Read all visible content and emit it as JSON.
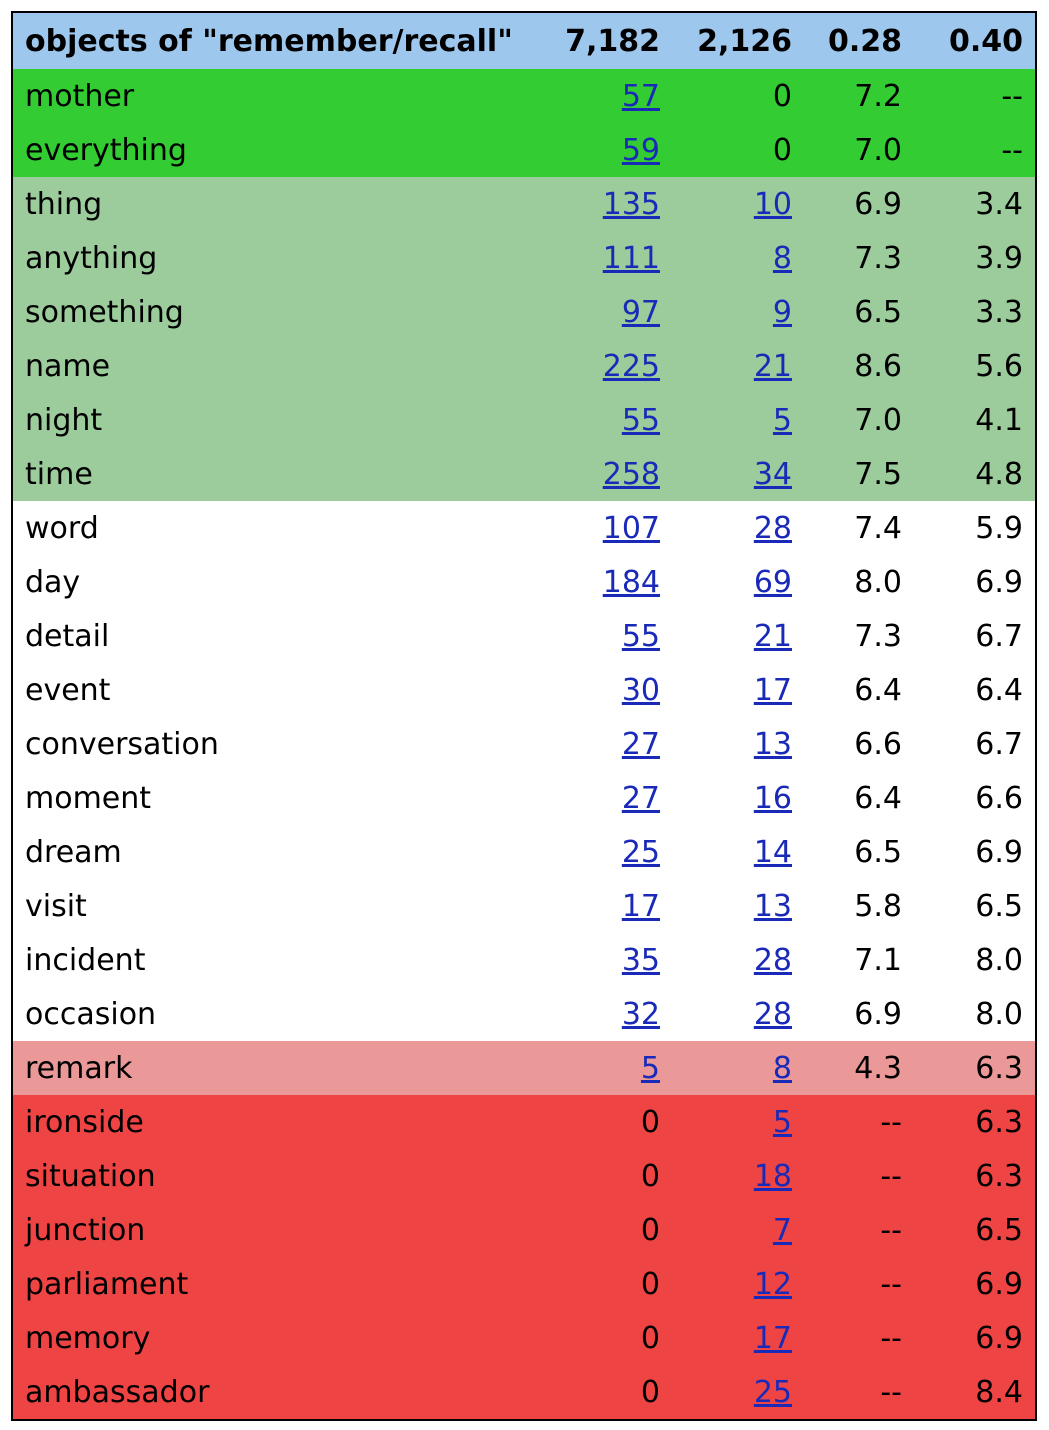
{
  "header": {
    "label": "objects of \"remember/recall\"",
    "c1": "7,182",
    "c2": "2,126",
    "c3": "0.28",
    "c4": "0.40"
  },
  "colors": {
    "header": "#9dc7ec",
    "strong_green": "#33cc33",
    "light_green": "#9ccc9b",
    "white": "#ffffff",
    "light_red": "#ea9898",
    "strong_red": "#ef4444",
    "link": "#1a2ab8"
  },
  "rows": [
    {
      "word": "mother",
      "c1": "57",
      "c2": "0",
      "c3": "7.2",
      "c4": "--",
      "c1_link": true,
      "c2_link": false,
      "band": "strong_green"
    },
    {
      "word": "everything",
      "c1": "59",
      "c2": "0",
      "c3": "7.0",
      "c4": "--",
      "c1_link": true,
      "c2_link": false,
      "band": "strong_green"
    },
    {
      "word": "thing",
      "c1": "135",
      "c2": "10",
      "c3": "6.9",
      "c4": "3.4",
      "c1_link": true,
      "c2_link": true,
      "band": "light_green"
    },
    {
      "word": "anything",
      "c1": "111",
      "c2": "8",
      "c3": "7.3",
      "c4": "3.9",
      "c1_link": true,
      "c2_link": true,
      "band": "light_green"
    },
    {
      "word": "something",
      "c1": "97",
      "c2": "9",
      "c3": "6.5",
      "c4": "3.3",
      "c1_link": true,
      "c2_link": true,
      "band": "light_green"
    },
    {
      "word": "name",
      "c1": "225",
      "c2": "21",
      "c3": "8.6",
      "c4": "5.6",
      "c1_link": true,
      "c2_link": true,
      "band": "light_green"
    },
    {
      "word": "night",
      "c1": "55",
      "c2": "5",
      "c3": "7.0",
      "c4": "4.1",
      "c1_link": true,
      "c2_link": true,
      "band": "light_green"
    },
    {
      "word": "time",
      "c1": "258",
      "c2": "34",
      "c3": "7.5",
      "c4": "4.8",
      "c1_link": true,
      "c2_link": true,
      "band": "light_green"
    },
    {
      "word": "word",
      "c1": "107",
      "c2": "28",
      "c3": "7.4",
      "c4": "5.9",
      "c1_link": true,
      "c2_link": true,
      "band": "white"
    },
    {
      "word": "day",
      "c1": "184",
      "c2": "69",
      "c3": "8.0",
      "c4": "6.9",
      "c1_link": true,
      "c2_link": true,
      "band": "white"
    },
    {
      "word": "detail",
      "c1": "55",
      "c2": "21",
      "c3": "7.3",
      "c4": "6.7",
      "c1_link": true,
      "c2_link": true,
      "band": "white"
    },
    {
      "word": "event",
      "c1": "30",
      "c2": "17",
      "c3": "6.4",
      "c4": "6.4",
      "c1_link": true,
      "c2_link": true,
      "band": "white"
    },
    {
      "word": "conversation",
      "c1": "27",
      "c2": "13",
      "c3": "6.6",
      "c4": "6.7",
      "c1_link": true,
      "c2_link": true,
      "band": "white"
    },
    {
      "word": "moment",
      "c1": "27",
      "c2": "16",
      "c3": "6.4",
      "c4": "6.6",
      "c1_link": true,
      "c2_link": true,
      "band": "white"
    },
    {
      "word": "dream",
      "c1": "25",
      "c2": "14",
      "c3": "6.5",
      "c4": "6.9",
      "c1_link": true,
      "c2_link": true,
      "band": "white"
    },
    {
      "word": "visit",
      "c1": "17",
      "c2": "13",
      "c3": "5.8",
      "c4": "6.5",
      "c1_link": true,
      "c2_link": true,
      "band": "white"
    },
    {
      "word": "incident",
      "c1": "35",
      "c2": "28",
      "c3": "7.1",
      "c4": "8.0",
      "c1_link": true,
      "c2_link": true,
      "band": "white"
    },
    {
      "word": "occasion",
      "c1": "32",
      "c2": "28",
      "c3": "6.9",
      "c4": "8.0",
      "c1_link": true,
      "c2_link": true,
      "band": "white"
    },
    {
      "word": "remark",
      "c1": "5",
      "c2": "8",
      "c3": "4.3",
      "c4": "6.3",
      "c1_link": true,
      "c2_link": true,
      "band": "light_red"
    },
    {
      "word": "ironside",
      "c1": "0",
      "c2": "5",
      "c3": "--",
      "c4": "6.3",
      "c1_link": false,
      "c2_link": true,
      "band": "strong_red"
    },
    {
      "word": "situation",
      "c1": "0",
      "c2": "18",
      "c3": "--",
      "c4": "6.3",
      "c1_link": false,
      "c2_link": true,
      "band": "strong_red"
    },
    {
      "word": "junction",
      "c1": "0",
      "c2": "7",
      "c3": "--",
      "c4": "6.5",
      "c1_link": false,
      "c2_link": true,
      "band": "strong_red"
    },
    {
      "word": "parliament",
      "c1": "0",
      "c2": "12",
      "c3": "--",
      "c4": "6.9",
      "c1_link": false,
      "c2_link": true,
      "band": "strong_red"
    },
    {
      "word": "memory",
      "c1": "0",
      "c2": "17",
      "c3": "--",
      "c4": "6.9",
      "c1_link": false,
      "c2_link": true,
      "band": "strong_red"
    },
    {
      "word": "ambassador",
      "c1": "0",
      "c2": "25",
      "c3": "--",
      "c4": "8.4",
      "c1_link": false,
      "c2_link": true,
      "band": "strong_red"
    }
  ]
}
